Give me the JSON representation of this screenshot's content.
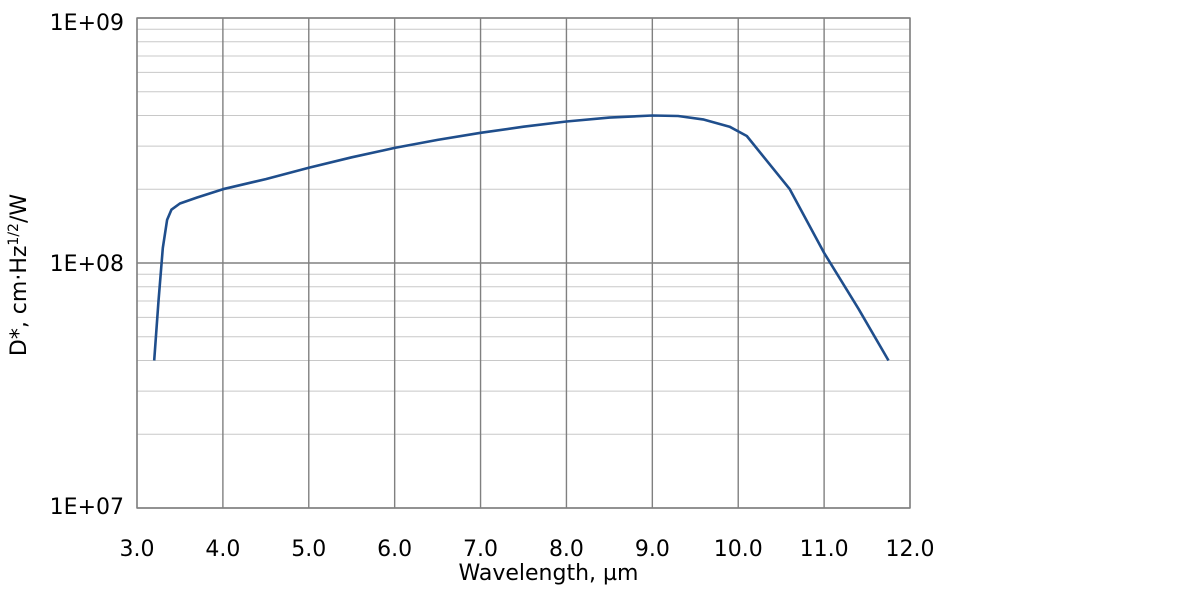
{
  "chart_data": {
    "type": "line",
    "xlabel": "Wavelength, µm",
    "ylabel_parts": {
      "base": "D*, cm·Hz",
      "sup": "1/2",
      "tail": "/W"
    },
    "xlim": [
      3.0,
      12.0
    ],
    "ylim": [
      10000000,
      1000000000
    ],
    "yscale": "log",
    "x_ticks": [
      "3.0",
      "4.0",
      "5.0",
      "6.0",
      "7.0",
      "8.0",
      "9.0",
      "10.0",
      "11.0",
      "12.0"
    ],
    "y_ticks": [
      "1E+07",
      "1E+08",
      "1E+09"
    ],
    "grid": true,
    "line_color": "#1f4e8c",
    "series": [
      {
        "x": [
          3.2,
          3.25,
          3.3,
          3.35,
          3.4,
          3.5,
          3.7,
          4.0,
          4.5,
          5.0,
          5.5,
          6.0,
          6.5,
          7.0,
          7.5,
          8.0,
          8.5,
          9.0,
          9.3,
          9.6,
          9.9,
          10.1,
          10.3,
          10.6,
          11.0,
          11.4,
          11.75
        ],
        "y": [
          40000000,
          70000000,
          115000000,
          150000000,
          165000000,
          175000000,
          185000000,
          200000000,
          220000000,
          245000000,
          270000000,
          295000000,
          318000000,
          340000000,
          360000000,
          378000000,
          392000000,
          400000000,
          398000000,
          385000000,
          360000000,
          330000000,
          270000000,
          200000000,
          110000000,
          65000000,
          40000000
        ]
      }
    ]
  }
}
